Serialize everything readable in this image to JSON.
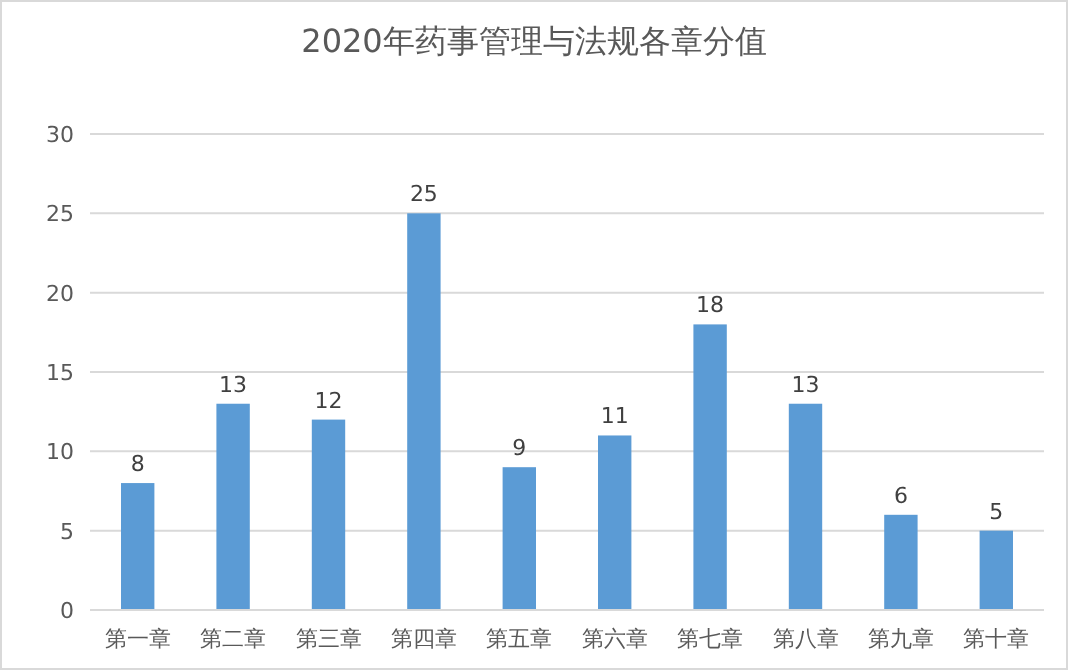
{
  "chart_data": {
    "type": "bar",
    "title": "2020年药事管理与法规各章分值",
    "categories": [
      "第一章",
      "第二章",
      "第三章",
      "第四章",
      "第五章",
      "第六章",
      "第七章",
      "第八章",
      "第九章",
      "第十章"
    ],
    "values": [
      8,
      13,
      12,
      25,
      9,
      11,
      18,
      13,
      6,
      5
    ],
    "color": "#5b9bd5",
    "ylim": [
      0,
      30
    ],
    "yticks": [
      0,
      5,
      10,
      15,
      20,
      25,
      30
    ],
    "grid": "y",
    "data_labels": true
  }
}
